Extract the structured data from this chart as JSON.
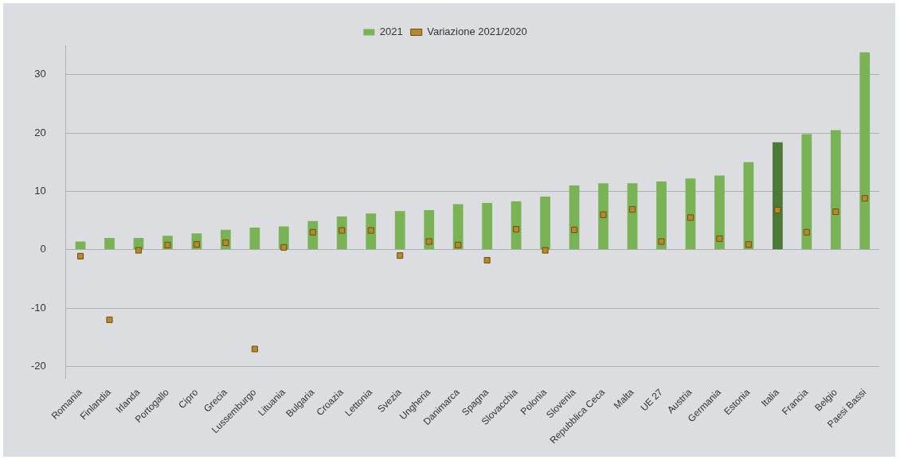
{
  "chart_data": {
    "type": "bar",
    "categories": [
      "Romania",
      "Finlandia",
      "Irlanda",
      "Portogallo",
      "Cipro",
      "Grecia",
      "Lussemburgo",
      "Lituania",
      "Bulgaria",
      "Croazia",
      "Lettonia",
      "Svezia",
      "Ungheria",
      "Danimarca",
      "Spagna",
      "Slovacchia",
      "Polonia",
      "Slovenia",
      "Repubblica Ceca",
      "Malta",
      "UE 27",
      "Austria",
      "Germania",
      "Estonia",
      "Italia",
      "Francia",
      "Belgio",
      "Paesi Bassi"
    ],
    "series": [
      {
        "name": "2021",
        "color": "#7ab356",
        "colors": [
          "#7ab356",
          "#7ab356",
          "#7ab356",
          "#7ab356",
          "#7ab356",
          "#7ab356",
          "#7ab356",
          "#7ab356",
          "#7ab356",
          "#7ab356",
          "#7ab356",
          "#7ab356",
          "#7ab356",
          "#7ab356",
          "#7ab356",
          "#7ab356",
          "#7ab356",
          "#7ab356",
          "#7ab356",
          "#7ab356",
          "#7ab356",
          "#7ab356",
          "#7ab356",
          "#7ab356",
          "#4b7a36",
          "#7ab356",
          "#7ab356",
          "#7ab356"
        ],
        "values": [
          1.4,
          2.0,
          2.0,
          2.4,
          2.8,
          3.4,
          3.8,
          4.0,
          4.9,
          5.7,
          6.2,
          6.6,
          6.8,
          7.8,
          8.0,
          8.3,
          9.1,
          11.0,
          11.4,
          11.4,
          11.7,
          12.2,
          12.7,
          15.0,
          18.4,
          19.8,
          20.5,
          33.8
        ]
      },
      {
        "name": "Variazione 2021/2020",
        "type": "scatter",
        "marker": "square",
        "color": "#b8892a",
        "x": [
          "Romania",
          "Finlandia",
          "Irlanda",
          "Portogallo",
          "Cipro",
          "Grecia",
          "Lussemburgo",
          "Lituania",
          "Bulgaria",
          "Croazia",
          "Lettonia",
          "Svezia",
          "Ungheria",
          "Danimarca",
          "Spagna",
          "Slovacchia",
          "Polonia",
          "Slovenia",
          "Repubblica Ceca",
          "Malta",
          "UE 27",
          "Austria",
          "Germania",
          "Estonia",
          "Italia",
          "Francia",
          "Belgio",
          "Paesi Bassi"
        ],
        "values": [
          -1.1,
          -12.0,
          -0.1,
          0.8,
          0.9,
          1.2,
          -17.0,
          0.4,
          3.0,
          3.3,
          3.3,
          -1.0,
          1.4,
          0.8,
          -1.8,
          3.5,
          -0.1,
          3.4,
          6.0,
          6.9,
          1.4,
          5.5,
          1.9,
          0.9,
          6.8,
          3.0,
          6.5,
          8.8
        ]
      }
    ],
    "ylim": [
      -22,
      35
    ],
    "yticks": [
      -20,
      -10,
      0,
      10,
      20,
      30
    ],
    "grid": "y",
    "legend": "top"
  }
}
